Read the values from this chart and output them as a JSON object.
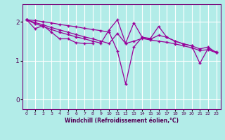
{
  "xlabel": "Windchill (Refroidissement éolien,°C)",
  "background_color": "#b2ece8",
  "line_color": "#990099",
  "grid_color": "#ffffff",
  "xlim": [
    -0.5,
    23.5
  ],
  "ylim": [
    -0.25,
    2.45
  ],
  "yticks": [
    0,
    1,
    2
  ],
  "xticks": [
    0,
    1,
    2,
    3,
    4,
    5,
    6,
    7,
    8,
    9,
    10,
    11,
    12,
    13,
    14,
    15,
    16,
    17,
    18,
    19,
    20,
    21,
    22,
    23
  ],
  "series": [
    [
      2.05,
      1.82,
      1.9,
      1.73,
      1.56,
      1.56,
      1.46,
      1.44,
      1.44,
      null,
      null,
      null,
      null,
      null,
      null,
      null,
      null,
      null,
      null,
      null,
      null,
      null,
      null,
      null
    ],
    [
      2.05,
      1.98,
      1.92,
      1.85,
      1.79,
      1.73,
      1.67,
      1.61,
      1.56,
      1.5,
      1.44,
      1.7,
      1.44,
      1.5,
      1.57,
      1.53,
      1.5,
      1.47,
      1.43,
      1.38,
      1.33,
      1.26,
      1.28,
      1.2
    ],
    [
      2.05,
      1.95,
      1.88,
      1.8,
      1.73,
      1.67,
      1.61,
      1.56,
      1.5,
      1.45,
      1.79,
      2.05,
      1.45,
      1.97,
      1.6,
      1.57,
      1.88,
      1.6,
      1.5,
      1.43,
      1.38,
      0.93,
      1.31,
      1.22
    ],
    [
      2.05,
      2.03,
      2.0,
      1.97,
      1.93,
      1.9,
      1.87,
      1.83,
      1.8,
      1.77,
      1.73,
      1.25,
      0.4,
      1.35,
      1.6,
      1.55,
      1.65,
      1.6,
      1.5,
      1.43,
      1.38,
      1.3,
      1.35,
      1.2
    ]
  ]
}
